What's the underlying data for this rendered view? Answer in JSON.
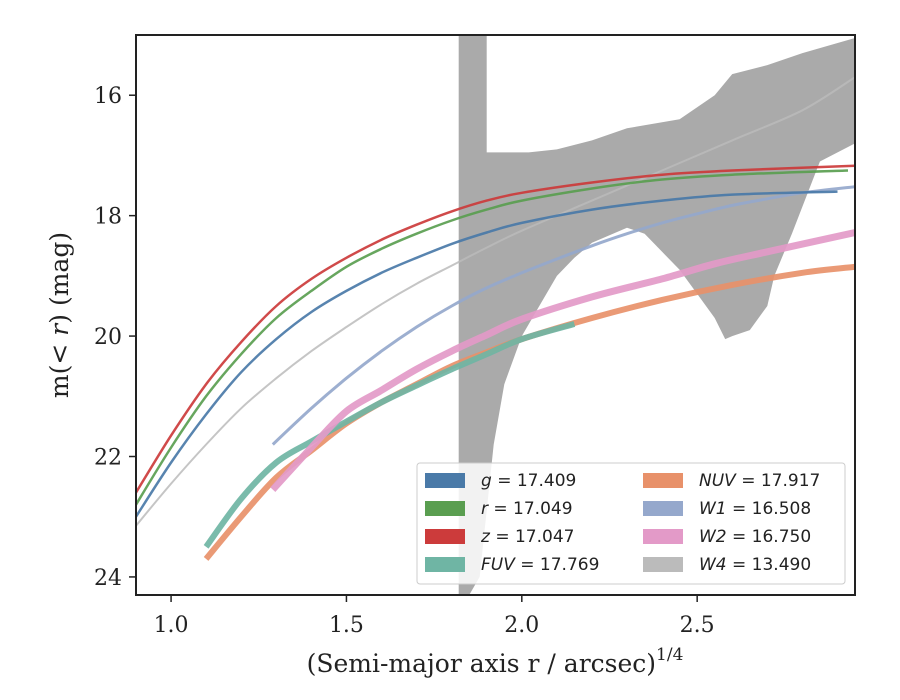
{
  "chart_data": {
    "type": "line",
    "title": "",
    "xlabel": "(Semi-major axis r / arcsec)",
    "xlabel_exponent": "1/4",
    "ylabel": "m(< r) (mag)",
    "xlim": [
      0.9,
      2.95
    ],
    "ylim": [
      24.3,
      15.0
    ],
    "y_inverted": true,
    "grid": false,
    "legend_position": "lower-right",
    "x_ticks": [
      "1.0",
      "1.5",
      "2.0",
      "2.5"
    ],
    "y_ticks": [
      "16",
      "18",
      "20",
      "22",
      "24"
    ],
    "shaded_band": {
      "name": "W4",
      "x_start": 1.82,
      "x_end": 2.95,
      "color": "#aaaaaa"
    },
    "series": [
      {
        "name": "g",
        "label": "g = 17.409",
        "color": "#4a7aa8",
        "x": [
          0.9,
          1.0,
          1.1,
          1.2,
          1.3,
          1.4,
          1.5,
          1.6,
          1.7,
          1.8,
          1.9,
          2.0,
          2.2,
          2.4,
          2.6,
          2.9
        ],
        "y": [
          23.0,
          22.1,
          21.3,
          20.6,
          20.05,
          19.6,
          19.25,
          18.95,
          18.7,
          18.47,
          18.28,
          18.12,
          17.9,
          17.75,
          17.65,
          17.6
        ]
      },
      {
        "name": "r",
        "label": "r = 17.049",
        "color": "#5a9e50",
        "x": [
          0.9,
          1.0,
          1.1,
          1.2,
          1.3,
          1.4,
          1.5,
          1.6,
          1.7,
          1.8,
          1.9,
          2.0,
          2.2,
          2.4,
          2.6,
          2.93
        ],
        "y": [
          22.8,
          21.85,
          21.0,
          20.3,
          19.7,
          19.25,
          18.85,
          18.55,
          18.3,
          18.08,
          17.9,
          17.75,
          17.55,
          17.4,
          17.32,
          17.25
        ]
      },
      {
        "name": "z",
        "label": "z = 17.047",
        "color": "#cc3b3b",
        "x": [
          0.9,
          1.0,
          1.1,
          1.2,
          1.3,
          1.4,
          1.5,
          1.6,
          1.7,
          1.8,
          1.9,
          2.0,
          2.2,
          2.4,
          2.6,
          2.95
        ],
        "y": [
          22.6,
          21.65,
          20.8,
          20.1,
          19.5,
          19.05,
          18.7,
          18.4,
          18.15,
          17.93,
          17.75,
          17.62,
          17.45,
          17.32,
          17.25,
          17.17
        ]
      },
      {
        "name": "FUV",
        "label": "FUV = 17.769",
        "color": "#6fb5a4",
        "x": [
          1.1,
          1.2,
          1.3,
          1.4,
          1.5,
          1.6,
          1.7,
          1.8,
          1.9,
          2.0,
          2.15
        ],
        "y": [
          23.5,
          22.7,
          22.1,
          21.75,
          21.42,
          21.1,
          20.82,
          20.55,
          20.3,
          20.05,
          19.8
        ]
      },
      {
        "name": "NUV",
        "label": "NUV = 17.917",
        "color": "#e8916a",
        "x": [
          1.1,
          1.2,
          1.3,
          1.4,
          1.5,
          1.6,
          1.7,
          1.8,
          1.9,
          2.0,
          2.2,
          2.4,
          2.6,
          2.8,
          2.95
        ],
        "y": [
          23.7,
          23.0,
          22.35,
          21.9,
          21.45,
          21.1,
          20.8,
          20.5,
          20.27,
          20.05,
          19.7,
          19.4,
          19.15,
          18.95,
          18.85
        ]
      },
      {
        "name": "W1",
        "label": "W1 = 16.508",
        "color": "#95a8cc",
        "x": [
          1.29,
          1.4,
          1.5,
          1.6,
          1.7,
          1.8,
          1.9,
          2.0,
          2.1,
          2.2,
          2.3,
          2.4,
          2.5,
          2.6,
          2.7,
          2.8,
          2.95
        ],
        "y": [
          21.8,
          21.2,
          20.7,
          20.25,
          19.85,
          19.5,
          19.2,
          18.95,
          18.72,
          18.5,
          18.3,
          18.12,
          17.97,
          17.83,
          17.72,
          17.62,
          17.52
        ]
      },
      {
        "name": "W2",
        "label": "W2 = 16.750",
        "color": "#e39ac8",
        "x": [
          1.29,
          1.4,
          1.5,
          1.6,
          1.7,
          1.8,
          1.9,
          2.0,
          2.2,
          2.4,
          2.55,
          2.7,
          2.95
        ],
        "y": [
          22.55,
          21.85,
          21.25,
          20.9,
          20.55,
          20.25,
          19.98,
          19.72,
          19.35,
          19.05,
          18.8,
          18.6,
          18.28
        ]
      },
      {
        "name": "W4",
        "label": "W4 = 13.490",
        "color": "#bbbbbb",
        "x": [
          0.9,
          1.0,
          1.1,
          1.2,
          1.3,
          1.4,
          1.5,
          1.6,
          1.7,
          1.8,
          1.9,
          2.0,
          2.2,
          2.4,
          2.6,
          2.8,
          2.95
        ],
        "y": [
          23.15,
          22.45,
          21.8,
          21.2,
          20.7,
          20.25,
          19.85,
          19.47,
          19.13,
          18.83,
          18.53,
          18.25,
          17.75,
          17.25,
          16.75,
          16.25,
          15.7
        ]
      }
    ],
    "legend": [
      {
        "label_italic": "g",
        "label_rest": " = 17.409",
        "color": "#4a7aa8"
      },
      {
        "label_italic": "r",
        "label_rest": " = 17.049",
        "color": "#5a9e50"
      },
      {
        "label_italic": "z",
        "label_rest": " = 17.047",
        "color": "#cc3b3b"
      },
      {
        "label_italic": "FUV",
        "label_rest": " = 17.769",
        "color": "#6fb5a4"
      },
      {
        "label_italic": "NUV",
        "label_rest": " = 17.917",
        "color": "#e8916a"
      },
      {
        "label_italic": "W1",
        "label_rest": " = 16.508",
        "color": "#95a8cc"
      },
      {
        "label_italic": "W2",
        "label_rest": " = 16.750",
        "color": "#e39ac8"
      },
      {
        "label_italic": "W4",
        "label_rest": " = 13.490",
        "color": "#bbbbbb"
      }
    ]
  }
}
